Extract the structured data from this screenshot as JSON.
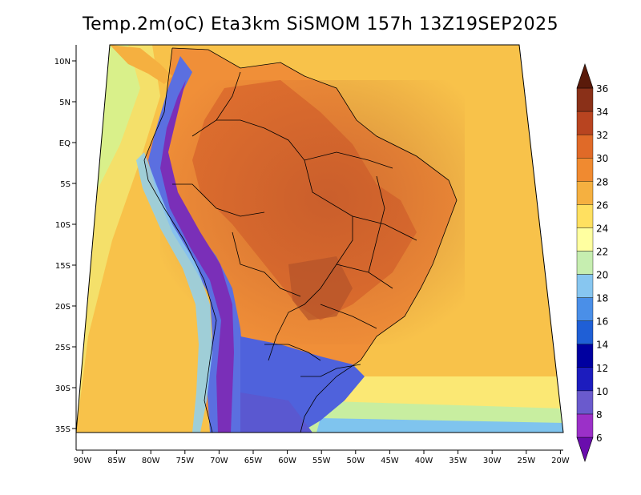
{
  "title": "Temp.2m(oC) Eta3km SiSMOM 157h 13Z19SEP2025",
  "map": {
    "lon_labels": [
      "90W",
      "85W",
      "80W",
      "75W",
      "70W",
      "65W",
      "60W",
      "55W",
      "50W",
      "45W",
      "40W",
      "35W",
      "30W",
      "25W",
      "20W"
    ],
    "lat_labels": [
      "10N",
      "5N",
      "EQ",
      "5S",
      "10S",
      "15S",
      "20S",
      "25S",
      "30S",
      "35S"
    ],
    "lon_values": [
      -90,
      -85,
      -80,
      -75,
      -70,
      -65,
      -60,
      -55,
      -50,
      -45,
      -40,
      -35,
      -30,
      -25,
      -20
    ],
    "lat_values": [
      10,
      5,
      0,
      -5,
      -10,
      -15,
      -20,
      -25,
      -30,
      -35
    ]
  },
  "colorbar": {
    "labels": [
      "6",
      "8",
      "10",
      "12",
      "14",
      "16",
      "18",
      "20",
      "22",
      "24",
      "26",
      "28",
      "30",
      "32",
      "34",
      "36"
    ],
    "colors": [
      "#6a0dad",
      "#9b30c8",
      "#6a5acd",
      "#1c1cbe",
      "#0000a0",
      "#1f5fd6",
      "#4a8fe8",
      "#87c6f0",
      "#c6eeb0",
      "#ffffa0",
      "#ffe060",
      "#f5b040",
      "#f08a30",
      "#e06a28",
      "#b84420",
      "#8a3018",
      "#5a1a0a"
    ]
  }
}
